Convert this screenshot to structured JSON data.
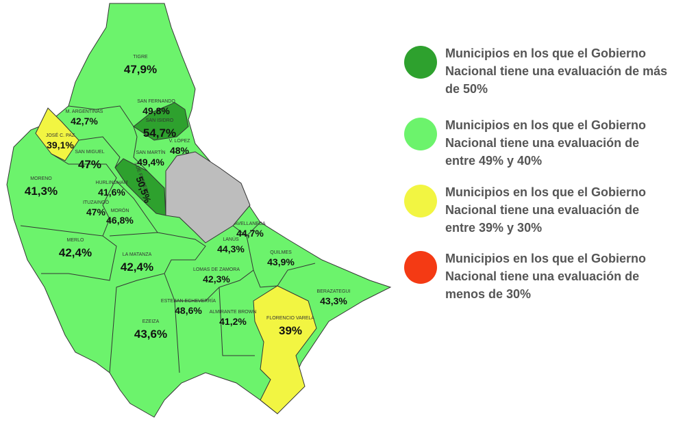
{
  "map": {
    "municipalities": [
      {
        "name": "TIGRE",
        "value": "47,9%"
      },
      {
        "name": "SAN FERNANDO",
        "value": "49,8%"
      },
      {
        "name": "SAN ISIDRO",
        "value": "54,7%"
      },
      {
        "name": "M. ARGENTINAS",
        "value": "42,7%"
      },
      {
        "name": "JOSÉ C. PAZ",
        "value": "39,1%"
      },
      {
        "name": "V. LÓPEZ",
        "value": "48%"
      },
      {
        "name": "SAN MARTÍN",
        "value": "49,4%"
      },
      {
        "name": "SAN MIGUEL",
        "value": "47%"
      },
      {
        "name": "3 DE FEBRERO",
        "value": "50,5%"
      },
      {
        "name": "MORENO",
        "value": "41,3%"
      },
      {
        "name": "HURLINGHAM",
        "value": "41,6%"
      },
      {
        "name": "ITUZAINGÓ",
        "value": "47%"
      },
      {
        "name": "MORÓN",
        "value": "46,8%"
      },
      {
        "name": "AVELLANEDA",
        "value": "44,7%"
      },
      {
        "name": "LANÚS",
        "value": "44,3%"
      },
      {
        "name": "MERLO",
        "value": "42,4%"
      },
      {
        "name": "LA MATANZA",
        "value": "42,4%"
      },
      {
        "name": "QUILMES",
        "value": "43,9%"
      },
      {
        "name": "LOMAS DE ZAMORA",
        "value": "42,3%"
      },
      {
        "name": "BERAZATEGUI",
        "value": "43,3%"
      },
      {
        "name": "ESTEBAN ECHEVERRÍA",
        "value": "48,6%"
      },
      {
        "name": "ALMIRANTE BROWN",
        "value": "41,2%"
      },
      {
        "name": "FLORENCIO VARELA",
        "value": "39%"
      },
      {
        "name": "EZEIZA",
        "value": "43,6%"
      }
    ]
  },
  "legend": [
    {
      "text": "Municipios en los que el Gobierno Nacional tiene una evaluación de más de 50%",
      "color": "#2ea12e"
    },
    {
      "text": "Municipios en los que  el Gobierno Nacional tiene una evaluación de entre 49% y 40%",
      "color": "#6cf36c"
    },
    {
      "text": "Municipios en los que  el Gobierno Nacional  tiene una evaluación de entre 39%  y 30%",
      "color": "#f2f542"
    },
    {
      "text": "Municipios en los que  el Gobierno Nacional  tiene una evaluación de menos de 30%",
      "color": "#f43a14"
    }
  ]
}
